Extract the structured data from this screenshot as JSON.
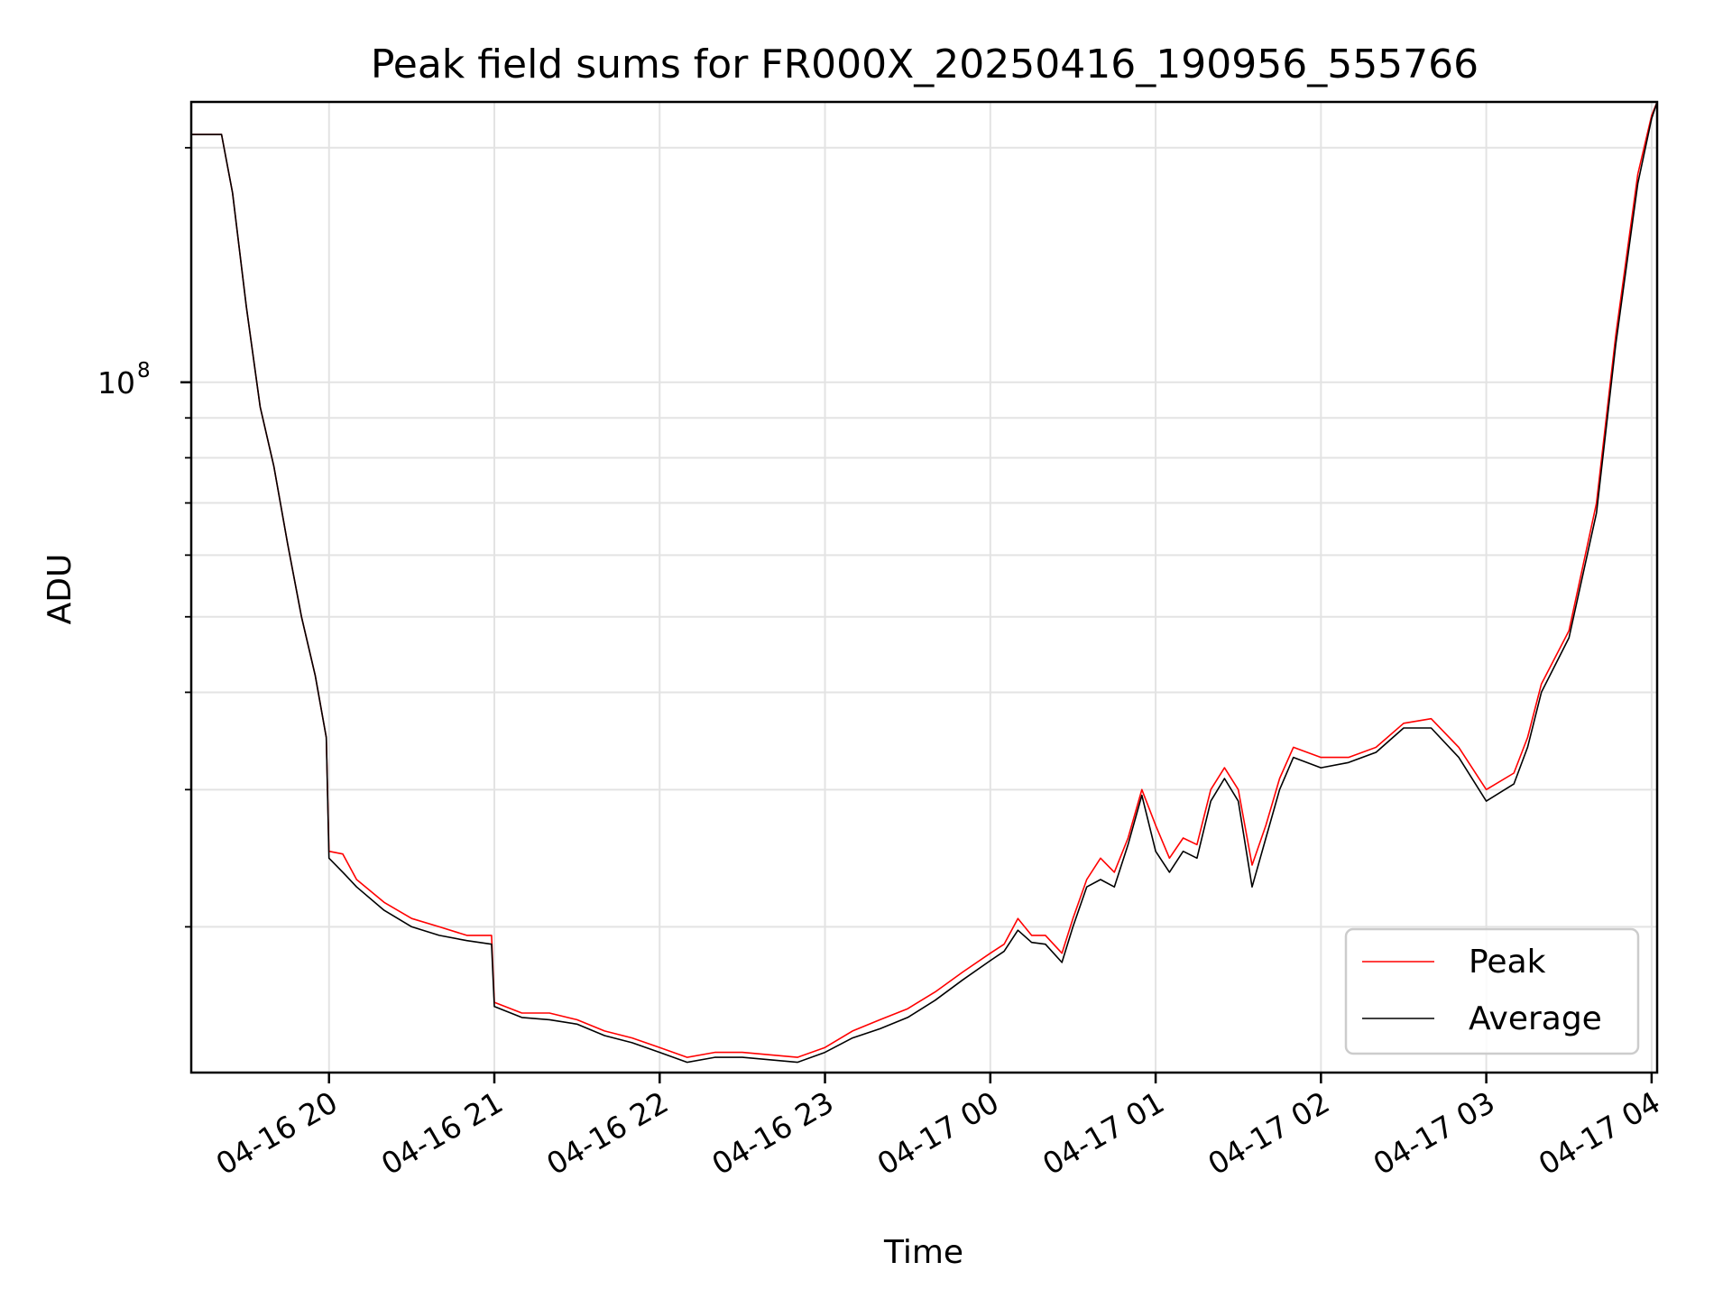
{
  "chart_data": {
    "type": "line",
    "title": "Peak field sums for FR000X_20250416_190956_555766",
    "xlabel": "Time",
    "ylabel": "ADU",
    "y_scale": "log",
    "grid": true,
    "legend_position": "lower-right",
    "xlim": [
      "2025-04-16 19:10",
      "2025-04-17 04:02"
    ],
    "ylim": [
      13000000,
      229000000
    ],
    "x_ticks": [
      {
        "value": "2025-04-16 20:00",
        "label": "04-16 20"
      },
      {
        "value": "2025-04-16 21:00",
        "label": "04-16 21"
      },
      {
        "value": "2025-04-16 22:00",
        "label": "04-16 22"
      },
      {
        "value": "2025-04-16 23:00",
        "label": "04-16 23"
      },
      {
        "value": "2025-04-17 00:00",
        "label": "04-17 00"
      },
      {
        "value": "2025-04-17 01:00",
        "label": "04-17 01"
      },
      {
        "value": "2025-04-17 02:00",
        "label": "04-17 02"
      },
      {
        "value": "2025-04-17 03:00",
        "label": "04-17 03"
      },
      {
        "value": "2025-04-17 04:00",
        "label": "04-17 04"
      }
    ],
    "y_major_ticks": [
      {
        "value": 100000000,
        "base": "10",
        "exp": "8"
      }
    ],
    "y_minor_ticks": [
      20000000,
      30000000,
      40000000,
      50000000,
      60000000,
      70000000,
      80000000,
      90000000,
      200000000
    ],
    "series": [
      {
        "name": "Peak",
        "color": "#ff0000",
        "points": [
          [
            "2025-04-16 19:10",
            208000000
          ],
          [
            "2025-04-16 19:21",
            208000000
          ],
          [
            "2025-04-16 19:25",
            175000000
          ],
          [
            "2025-04-16 19:30",
            125000000
          ],
          [
            "2025-04-16 19:35",
            93000000
          ],
          [
            "2025-04-16 19:40",
            78000000
          ],
          [
            "2025-04-16 19:45",
            62000000
          ],
          [
            "2025-04-16 19:50",
            50000000
          ],
          [
            "2025-04-16 19:55",
            42000000
          ],
          [
            "2025-04-16 19:59",
            35000000
          ],
          [
            "2025-04-16 20:00",
            25000000
          ],
          [
            "2025-04-16 20:05",
            24800000
          ],
          [
            "2025-04-16 20:10",
            23000000
          ],
          [
            "2025-04-16 20:20",
            21500000
          ],
          [
            "2025-04-16 20:30",
            20500000
          ],
          [
            "2025-04-16 20:40",
            20000000
          ],
          [
            "2025-04-16 20:50",
            19500000
          ],
          [
            "2025-04-16 20:59",
            19500000
          ],
          [
            "2025-04-16 21:00",
            16000000
          ],
          [
            "2025-04-16 21:10",
            15500000
          ],
          [
            "2025-04-16 21:20",
            15500000
          ],
          [
            "2025-04-16 21:30",
            15200000
          ],
          [
            "2025-04-16 21:40",
            14700000
          ],
          [
            "2025-04-16 21:50",
            14400000
          ],
          [
            "2025-04-16 22:00",
            14000000
          ],
          [
            "2025-04-16 22:10",
            13600000
          ],
          [
            "2025-04-16 22:20",
            13800000
          ],
          [
            "2025-04-16 22:30",
            13800000
          ],
          [
            "2025-04-16 22:40",
            13700000
          ],
          [
            "2025-04-16 22:50",
            13600000
          ],
          [
            "2025-04-16 23:00",
            14000000
          ],
          [
            "2025-04-16 23:10",
            14700000
          ],
          [
            "2025-04-16 23:20",
            15200000
          ],
          [
            "2025-04-16 23:30",
            15700000
          ],
          [
            "2025-04-16 23:40",
            16500000
          ],
          [
            "2025-04-16 23:50",
            17500000
          ],
          [
            "2025-04-17 00:00",
            18500000
          ],
          [
            "2025-04-17 00:05",
            19000000
          ],
          [
            "2025-04-17 00:10",
            20500000
          ],
          [
            "2025-04-17 00:15",
            19500000
          ],
          [
            "2025-04-17 00:20",
            19500000
          ],
          [
            "2025-04-17 00:26",
            18500000
          ],
          [
            "2025-04-17 00:30",
            20500000
          ],
          [
            "2025-04-17 00:35",
            23000000
          ],
          [
            "2025-04-17 00:40",
            24500000
          ],
          [
            "2025-04-17 00:45",
            23500000
          ],
          [
            "2025-04-17 00:50",
            26000000
          ],
          [
            "2025-04-17 00:55",
            30000000
          ],
          [
            "2025-04-17 01:00",
            27000000
          ],
          [
            "2025-04-17 01:05",
            24500000
          ],
          [
            "2025-04-17 01:10",
            26000000
          ],
          [
            "2025-04-17 01:15",
            25500000
          ],
          [
            "2025-04-17 01:20",
            30000000
          ],
          [
            "2025-04-17 01:25",
            32000000
          ],
          [
            "2025-04-17 01:30",
            30000000
          ],
          [
            "2025-04-17 01:35",
            24000000
          ],
          [
            "2025-04-17 01:40",
            27000000
          ],
          [
            "2025-04-17 01:45",
            31000000
          ],
          [
            "2025-04-17 01:50",
            34000000
          ],
          [
            "2025-04-17 02:00",
            33000000
          ],
          [
            "2025-04-17 02:10",
            33000000
          ],
          [
            "2025-04-17 02:20",
            34000000
          ],
          [
            "2025-04-17 02:30",
            36500000
          ],
          [
            "2025-04-17 02:40",
            37000000
          ],
          [
            "2025-04-17 02:50",
            34000000
          ],
          [
            "2025-04-17 03:00",
            30000000
          ],
          [
            "2025-04-17 03:10",
            31500000
          ],
          [
            "2025-04-17 03:15",
            35000000
          ],
          [
            "2025-04-17 03:20",
            41000000
          ],
          [
            "2025-04-17 03:30",
            48000000
          ],
          [
            "2025-04-17 03:40",
            70000000
          ],
          [
            "2025-04-17 03:47",
            115000000
          ],
          [
            "2025-04-17 03:55",
            185000000
          ],
          [
            "2025-04-17 04:00",
            220000000
          ],
          [
            "2025-04-17 04:02",
            229000000
          ]
        ]
      },
      {
        "name": "Average",
        "color": "#000000",
        "points": [
          [
            "2025-04-16 19:10",
            208000000
          ],
          [
            "2025-04-16 19:21",
            208000000
          ],
          [
            "2025-04-16 19:25",
            175000000
          ],
          [
            "2025-04-16 19:30",
            125000000
          ],
          [
            "2025-04-16 19:35",
            93000000
          ],
          [
            "2025-04-16 19:40",
            78000000
          ],
          [
            "2025-04-16 19:45",
            62000000
          ],
          [
            "2025-04-16 19:50",
            50000000
          ],
          [
            "2025-04-16 19:55",
            42000000
          ],
          [
            "2025-04-16 19:59",
            35000000
          ],
          [
            "2025-04-16 20:00",
            24500000
          ],
          [
            "2025-04-16 20:05",
            23500000
          ],
          [
            "2025-04-16 20:10",
            22500000
          ],
          [
            "2025-04-16 20:20",
            21000000
          ],
          [
            "2025-04-16 20:30",
            20000000
          ],
          [
            "2025-04-16 20:40",
            19500000
          ],
          [
            "2025-04-16 20:50",
            19200000
          ],
          [
            "2025-04-16 20:59",
            19000000
          ],
          [
            "2025-04-16 21:00",
            15800000
          ],
          [
            "2025-04-16 21:10",
            15300000
          ],
          [
            "2025-04-16 21:20",
            15200000
          ],
          [
            "2025-04-16 21:30",
            15000000
          ],
          [
            "2025-04-16 21:40",
            14500000
          ],
          [
            "2025-04-16 21:50",
            14200000
          ],
          [
            "2025-04-16 22:00",
            13800000
          ],
          [
            "2025-04-16 22:10",
            13400000
          ],
          [
            "2025-04-16 22:20",
            13600000
          ],
          [
            "2025-04-16 22:30",
            13600000
          ],
          [
            "2025-04-16 22:40",
            13500000
          ],
          [
            "2025-04-16 22:50",
            13400000
          ],
          [
            "2025-04-16 23:00",
            13800000
          ],
          [
            "2025-04-16 23:10",
            14400000
          ],
          [
            "2025-04-16 23:20",
            14800000
          ],
          [
            "2025-04-16 23:30",
            15300000
          ],
          [
            "2025-04-16 23:40",
            16100000
          ],
          [
            "2025-04-16 23:50",
            17100000
          ],
          [
            "2025-04-17 00:00",
            18100000
          ],
          [
            "2025-04-17 00:05",
            18600000
          ],
          [
            "2025-04-17 00:10",
            19800000
          ],
          [
            "2025-04-17 00:15",
            19100000
          ],
          [
            "2025-04-17 00:20",
            19000000
          ],
          [
            "2025-04-17 00:26",
            18000000
          ],
          [
            "2025-04-17 00:30",
            20000000
          ],
          [
            "2025-04-17 00:35",
            22500000
          ],
          [
            "2025-04-17 00:40",
            23000000
          ],
          [
            "2025-04-17 00:45",
            22500000
          ],
          [
            "2025-04-17 00:50",
            25500000
          ],
          [
            "2025-04-17 00:55",
            29500000
          ],
          [
            "2025-04-17 01:00",
            25000000
          ],
          [
            "2025-04-17 01:05",
            23500000
          ],
          [
            "2025-04-17 01:10",
            25000000
          ],
          [
            "2025-04-17 01:15",
            24500000
          ],
          [
            "2025-04-17 01:20",
            29000000
          ],
          [
            "2025-04-17 01:25",
            31000000
          ],
          [
            "2025-04-17 01:30",
            29000000
          ],
          [
            "2025-04-17 01:35",
            22500000
          ],
          [
            "2025-04-17 01:40",
            26000000
          ],
          [
            "2025-04-17 01:45",
            30000000
          ],
          [
            "2025-04-17 01:50",
            33000000
          ],
          [
            "2025-04-17 02:00",
            32000000
          ],
          [
            "2025-04-17 02:10",
            32500000
          ],
          [
            "2025-04-17 02:20",
            33500000
          ],
          [
            "2025-04-17 02:30",
            36000000
          ],
          [
            "2025-04-17 02:40",
            36000000
          ],
          [
            "2025-04-17 02:50",
            33000000
          ],
          [
            "2025-04-17 03:00",
            29000000
          ],
          [
            "2025-04-17 03:10",
            30500000
          ],
          [
            "2025-04-17 03:15",
            34000000
          ],
          [
            "2025-04-17 03:20",
            40000000
          ],
          [
            "2025-04-17 03:30",
            47000000
          ],
          [
            "2025-04-17 03:40",
            68000000
          ],
          [
            "2025-04-17 03:47",
            112000000
          ],
          [
            "2025-04-17 03:55",
            180000000
          ],
          [
            "2025-04-17 04:00",
            218000000
          ],
          [
            "2025-04-17 04:02",
            229000000
          ]
        ]
      }
    ]
  }
}
